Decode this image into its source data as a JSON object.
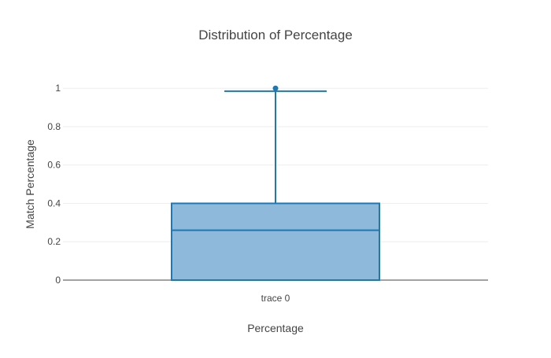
{
  "chart_data": {
    "type": "box",
    "title": "Distribution of Percentage",
    "xlabel": "Percentage",
    "ylabel": "Match Percentage",
    "ylim": [
      0,
      1.05
    ],
    "yticks": [
      0,
      0.2,
      0.4,
      0.6,
      0.8,
      1
    ],
    "ytick_labels": [
      "0",
      "0.2",
      "0.4",
      "0.6",
      "0.8",
      "1"
    ],
    "grid": true,
    "series": [
      {
        "name": "trace 0",
        "min": 0,
        "q1": 0,
        "median": 0.26,
        "q3": 0.4,
        "upper_whisker": 0.985,
        "outliers": [
          1.0
        ],
        "color": "#1f77b4",
        "fill": "#8fb9da"
      }
    ]
  }
}
